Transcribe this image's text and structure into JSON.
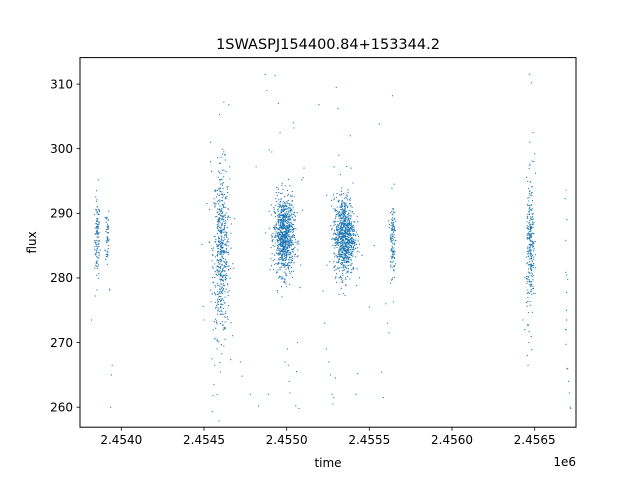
{
  "chart_data": {
    "type": "scatter",
    "title": "1SWASPJ154400.84+153344.2",
    "xlabel": "time",
    "ylabel": "flux",
    "x_offset_label": "1e6",
    "xlim": [
      2453750,
      2456750
    ],
    "ylim": [
      256.9,
      314.1
    ],
    "x_ticks": [
      2.454,
      2.4545,
      2.455,
      2.4555,
      2.456,
      2.4565
    ],
    "x_tick_labels": [
      "2.4540",
      "2.4545",
      "2.4550",
      "2.4555",
      "2.4560",
      "2.4565"
    ],
    "y_ticks": [
      260,
      270,
      280,
      290,
      300,
      310
    ],
    "y_tick_labels": [
      "260",
      "270",
      "280",
      "290",
      "300",
      "310"
    ],
    "grid": false,
    "legend": "none",
    "marker_color": "#1f77b4",
    "clusters": [
      {
        "x_center": 2453855,
        "x_spread": 8,
        "y_center": 286,
        "y_spread": 3.0,
        "n": 110
      },
      {
        "x_center": 2453915,
        "x_spread": 6,
        "y_center": 286.5,
        "y_spread": 2.6,
        "n": 50
      },
      {
        "x_center": 2454605,
        "x_spread": 25,
        "y_center": 284,
        "y_spread": 6.5,
        "n": 550
      },
      {
        "x_center": 2454985,
        "x_spread": 30,
        "y_center": 286.5,
        "y_spread": 3.0,
        "n": 900
      },
      {
        "x_center": 2455350,
        "x_spread": 32,
        "y_center": 286.5,
        "y_spread": 3.0,
        "n": 900
      },
      {
        "x_center": 2455640,
        "x_spread": 8,
        "y_center": 286,
        "y_spread": 3.2,
        "n": 120
      },
      {
        "x_center": 2456475,
        "x_spread": 12,
        "y_center": 284.5,
        "y_spread": 5.0,
        "n": 260
      },
      {
        "x_center": 2456690,
        "x_spread": 4,
        "y_center": 270,
        "y_spread": 11,
        "n": 12
      }
    ],
    "outliers": [
      [
        2453820,
        273.5
      ],
      [
        2453842,
        277.2
      ],
      [
        2453930,
        278.1
      ],
      [
        2453930,
        278.3
      ],
      [
        2453935,
        260.0
      ],
      [
        2453940,
        265.0
      ],
      [
        2453945,
        266.5
      ],
      [
        2453860,
        295.2
      ],
      [
        2454488,
        285.2
      ],
      [
        2454495,
        275.6
      ],
      [
        2454500,
        273.5
      ],
      [
        2454540,
        298.0
      ],
      [
        2454540,
        301.0
      ],
      [
        2454545,
        296.5
      ],
      [
        2454550,
        259.3
      ],
      [
        2454555,
        261.8
      ],
      [
        2454560,
        263.5
      ],
      [
        2454565,
        266.5
      ],
      [
        2454580,
        270.4
      ],
      [
        2454620,
        307.2
      ],
      [
        2454650,
        306.8
      ],
      [
        2454680,
        281.5
      ],
      [
        2454720,
        267.0
      ],
      [
        2454730,
        264.8
      ],
      [
        2454780,
        262.0
      ],
      [
        2454815,
        297.2
      ],
      [
        2454830,
        260.2
      ],
      [
        2454870,
        311.5
      ],
      [
        2454880,
        309.0
      ],
      [
        2454890,
        262.0
      ],
      [
        2454895,
        299.8
      ],
      [
        2454910,
        299.5
      ],
      [
        2454930,
        311.3
      ],
      [
        2454950,
        307.0
      ],
      [
        2454960,
        302.5
      ],
      [
        2454990,
        267.0
      ],
      [
        2455005,
        269.0
      ],
      [
        2455010,
        266.5
      ],
      [
        2455015,
        264.0
      ],
      [
        2455020,
        262.2
      ],
      [
        2455040,
        304.0
      ],
      [
        2455045,
        303.2
      ],
      [
        2455055,
        260.2
      ],
      [
        2455060,
        265.5
      ],
      [
        2455065,
        270.0
      ],
      [
        2455075,
        259.8
      ],
      [
        2455080,
        278.5
      ],
      [
        2455085,
        282.0
      ],
      [
        2455090,
        295.2
      ],
      [
        2455095,
        290.5
      ],
      [
        2455100,
        295.5
      ],
      [
        2455105,
        297.0
      ],
      [
        2455195,
        306.8
      ],
      [
        2455220,
        278.0
      ],
      [
        2455230,
        273.0
      ],
      [
        2455240,
        269.0
      ],
      [
        2455255,
        267.0
      ],
      [
        2455265,
        265.0
      ],
      [
        2455275,
        262.0
      ],
      [
        2455280,
        260.5
      ],
      [
        2455285,
        261.5
      ],
      [
        2455295,
        264.5
      ],
      [
        2455300,
        309.5
      ],
      [
        2455310,
        306.2
      ],
      [
        2455315,
        299.0
      ],
      [
        2455325,
        296.0
      ],
      [
        2455385,
        302.0
      ],
      [
        2455390,
        297.0
      ],
      [
        2455420,
        262.0
      ],
      [
        2455430,
        265.2
      ],
      [
        2455500,
        275.5
      ],
      [
        2455530,
        285.0
      ],
      [
        2455560,
        303.8
      ],
      [
        2455575,
        265.4
      ],
      [
        2455585,
        261.5
      ],
      [
        2455600,
        276.0
      ],
      [
        2455610,
        273.0
      ],
      [
        2455620,
        271.5
      ],
      [
        2455640,
        308.2
      ],
      [
        2455650,
        294.5
      ],
      [
        2456430,
        273.5
      ],
      [
        2456440,
        272.0
      ],
      [
        2456450,
        276.2
      ],
      [
        2456455,
        268.0
      ],
      [
        2456460,
        266.5
      ],
      [
        2456465,
        270.0
      ],
      [
        2456470,
        311.5
      ],
      [
        2456480,
        310.2
      ],
      [
        2456490,
        302.5
      ],
      [
        2456495,
        298.0
      ],
      [
        2456500,
        299.2
      ],
      [
        2456505,
        296.2
      ],
      [
        2456690,
        293.6
      ],
      [
        2456695,
        289.0
      ],
      [
        2456700,
        279.8
      ],
      [
        2456700,
        266.0
      ],
      [
        2456705,
        264.0
      ],
      [
        2456710,
        262.2
      ],
      [
        2456715,
        260.0
      ],
      [
        2456718,
        259.8
      ]
    ]
  }
}
